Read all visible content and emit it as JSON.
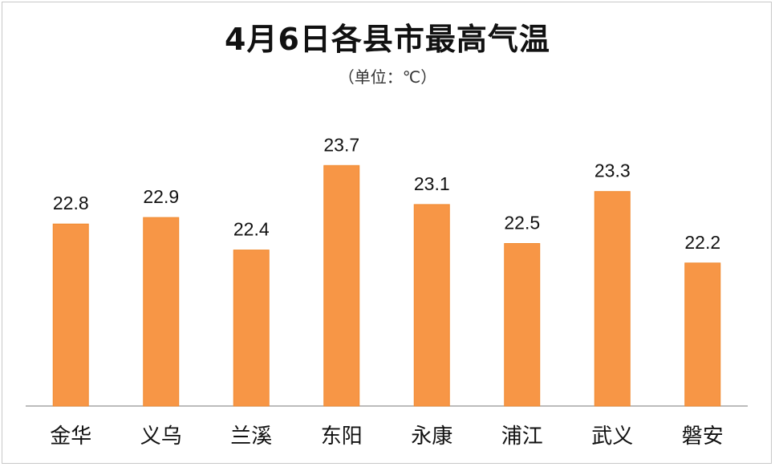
{
  "chart_data": {
    "type": "bar",
    "title": "4月6日各县市最高气温",
    "subtitle": "（单位：℃）",
    "categories": [
      "金华",
      "义乌",
      "兰溪",
      "东阳",
      "永康",
      "浦江",
      "武义",
      "磐安"
    ],
    "values": [
      22.8,
      22.9,
      22.4,
      23.7,
      23.1,
      22.5,
      23.3,
      22.2
    ],
    "xlabel": "",
    "ylabel": "",
    "ylim": [
      20,
      24.2
    ],
    "grid": false,
    "legend": "none",
    "data_labels": true,
    "colors": {
      "bar": "#F79646",
      "bar_border": "#F08A30",
      "axis": "#a6a6a6",
      "label_text": "#111111"
    }
  }
}
